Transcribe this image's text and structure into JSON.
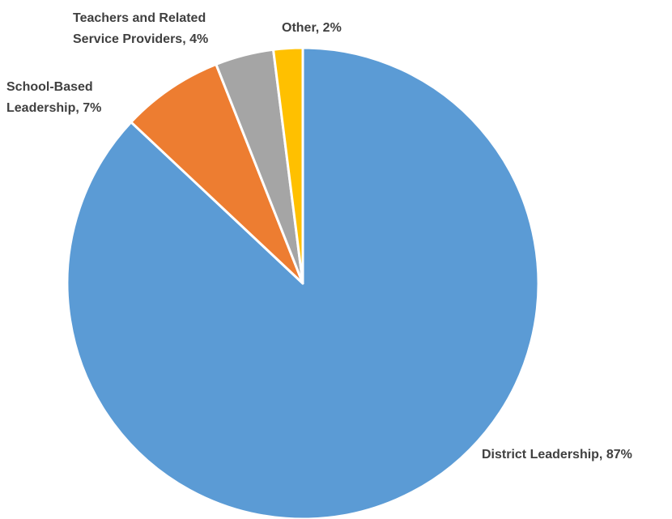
{
  "chart_data": {
    "type": "pie",
    "title": "",
    "start_angle_deg": 0,
    "direction": "clockwise",
    "slices": [
      {
        "label": "District Leadership, 87%",
        "value": 87,
        "color": "#5B9BD5"
      },
      {
        "label": "School-Based Leadership, 7%",
        "value": 7,
        "color": "#ED7D31"
      },
      {
        "label": "Teachers and Related Service Providers, 4%",
        "value": 4,
        "color": "#A5A5A5"
      },
      {
        "label": "Other, 2%",
        "value": 2,
        "color": "#FFC000"
      }
    ],
    "label_lines": [
      [
        "District Leadership, 87%"
      ],
      [
        "School-Based",
        "Leadership, 7%"
      ],
      [
        "Teachers and Related",
        "Service Providers, 4%"
      ],
      [
        "Other, 2%"
      ]
    ],
    "legend": "none"
  }
}
